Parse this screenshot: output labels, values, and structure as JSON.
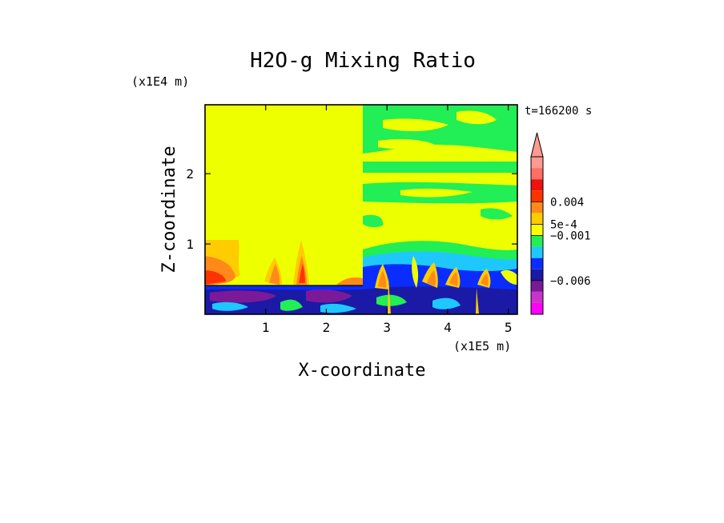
{
  "chart_data": {
    "type": "heatmap",
    "title": "H2O-g Mixing Ratio",
    "xlabel": "X-coordinate",
    "ylabel": "Z-coordinate",
    "x_scale_label": "(x1E5 m)",
    "y_scale_label": "(x1E4 m)",
    "time_label": "t=166200 s",
    "xlim": [
      0,
      5.15
    ],
    "ylim": [
      0,
      2.98
    ],
    "x_ticks": [
      {
        "value": 1,
        "label": "1"
      },
      {
        "value": 2,
        "label": "2"
      },
      {
        "value": 3,
        "label": "3"
      },
      {
        "value": 4,
        "label": "4"
      },
      {
        "value": 5,
        "label": "5"
      }
    ],
    "y_ticks": [
      {
        "value": 1,
        "label": "1"
      },
      {
        "value": 2,
        "label": "2"
      }
    ],
    "grid": false,
    "colorbar": {
      "colors": [
        "#ff00ff",
        "#cc33cc",
        "#7a1a99",
        "#1a1aa6",
        "#0a2cff",
        "#1ec8ff",
        "#22ee55",
        "#ffff00",
        "#ffcc00",
        "#ff8a1a",
        "#ff3300",
        "#ee1111",
        "#ff6f66",
        "#ff9a90"
      ],
      "labels": [
        {
          "value": 0.004,
          "label": "0.004"
        },
        {
          "value": 0.0005,
          "label": "5e-4"
        },
        {
          "value": -0.001,
          "label": "−0.001"
        },
        {
          "value": -0.006,
          "label": "−0.006"
        }
      ],
      "extend": "max"
    }
  }
}
